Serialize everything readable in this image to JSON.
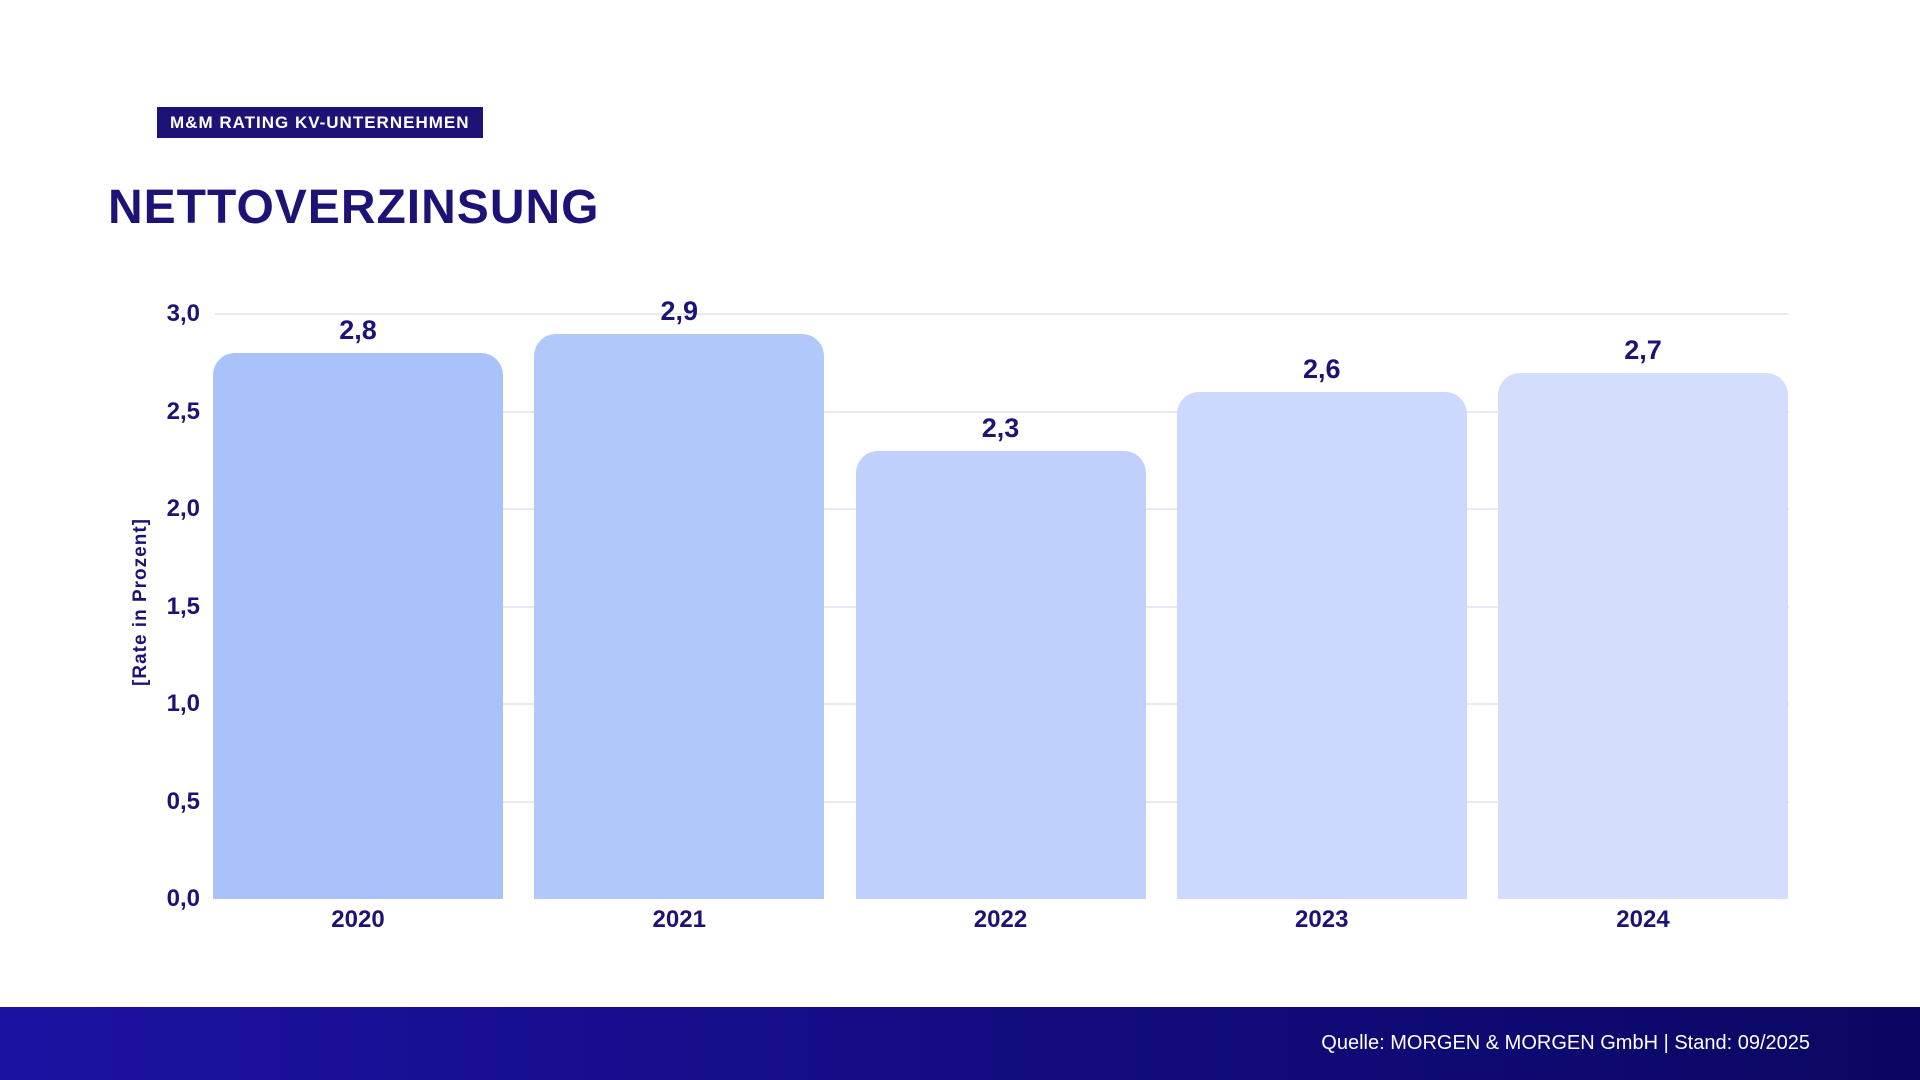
{
  "badge": {
    "label": "M&M RATING KV-UNTERNEHMEN"
  },
  "title": "NETTOVERZINSUNG",
  "chart_data": {
    "type": "bar",
    "categories": [
      "2020",
      "2021",
      "2022",
      "2023",
      "2024"
    ],
    "values": [
      2.8,
      2.9,
      2.3,
      2.6,
      2.7
    ],
    "value_labels": [
      "2,8",
      "2,9",
      "2,3",
      "2,6",
      "2,7"
    ],
    "title": "NETTOVERZINSUNG",
    "xlabel": "",
    "ylabel": "[Rate in Prozent]",
    "ylim": [
      0.0,
      3.0
    ],
    "yticks": [
      0.0,
      0.5,
      1.0,
      1.5,
      2.0,
      2.5,
      3.0
    ],
    "ytick_labels": [
      "0,0",
      "0,5",
      "1,0",
      "1,5",
      "2,0",
      "2,5",
      "3,0"
    ],
    "grid": true,
    "legend": "none",
    "bar_colors": [
      "#a9c3fa",
      "#b1c9fa",
      "#bed0fb",
      "#ccd9fc",
      "#d4defc"
    ]
  },
  "footer": {
    "text": "Quelle: MORGEN & MORGEN GmbH | Stand: 09/2025"
  },
  "colors": {
    "ink": "#1d1377",
    "badge_bg": "#1d1377",
    "gridline": "#e7e9f5",
    "footer_gradient_left": "#1c12a2",
    "footer_gradient_right": "#0a0763",
    "background": "#ffffff"
  }
}
